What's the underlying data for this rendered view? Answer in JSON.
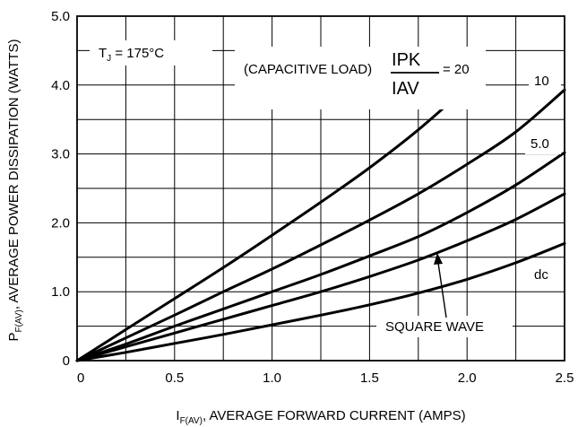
{
  "chart_data": {
    "type": "line",
    "xlabel_prefix": "I",
    "xlabel_sub": "F(AV)",
    "xlabel_rest": ", AVERAGE FORWARD CURRENT (AMPS)",
    "ylabel_prefix": "P",
    "ylabel_sub": "F(AV)",
    "ylabel_rest": ", AVERAGE POWER DISSIPATION (WATTS)",
    "xlim": [
      0,
      2.5
    ],
    "ylim": [
      0,
      5.0
    ],
    "x_ticks": [
      "0",
      "0.5",
      "1.0",
      "1.5",
      "2.0",
      "2.5"
    ],
    "y_ticks": [
      "0",
      "1.0",
      "2.0",
      "3.0",
      "4.0",
      "5.0"
    ],
    "grid": true,
    "annotations": {
      "tj_prefix": "T",
      "tj_sub": "J",
      "tj_rest": " = 175°C",
      "load_text": "(CAPACITIVE LOAD)",
      "ipk_i": "I",
      "ipk_sub": "PK",
      "iav_i": "I",
      "iav_sub": "AV",
      "ratio_eq": "= 20",
      "label_10": "10",
      "label_5": "5.0",
      "label_dc": "dc",
      "square_wave": "SQUARE WAVE"
    },
    "series": [
      {
        "name": "20",
        "x": [
          0,
          0.25,
          0.5,
          0.75,
          1.0,
          1.25,
          1.5,
          1.75,
          2.0
        ],
        "y": [
          0,
          0.45,
          0.9,
          1.35,
          1.82,
          2.3,
          2.8,
          3.35,
          3.97
        ]
      },
      {
        "name": "10",
        "x": [
          0,
          0.25,
          0.5,
          0.75,
          1.0,
          1.25,
          1.5,
          1.75,
          2.0,
          2.25,
          2.5
        ],
        "y": [
          0,
          0.33,
          0.66,
          1.0,
          1.33,
          1.68,
          2.04,
          2.42,
          2.85,
          3.32,
          3.93
        ]
      },
      {
        "name": "5.0",
        "x": [
          0,
          0.25,
          0.5,
          0.75,
          1.0,
          1.25,
          1.5,
          1.75,
          2.0,
          2.25,
          2.5
        ],
        "y": [
          0,
          0.24,
          0.5,
          0.75,
          1.0,
          1.25,
          1.52,
          1.8,
          2.15,
          2.55,
          3.02
        ]
      },
      {
        "name": "square wave",
        "x": [
          0,
          0.25,
          0.5,
          0.75,
          1.0,
          1.25,
          1.5,
          1.75,
          2.0,
          2.25,
          2.5
        ],
        "y": [
          0,
          0.2,
          0.4,
          0.6,
          0.8,
          1.0,
          1.22,
          1.46,
          1.74,
          2.05,
          2.42
        ]
      },
      {
        "name": "dc",
        "x": [
          0,
          0.25,
          0.5,
          0.75,
          1.0,
          1.25,
          1.5,
          1.75,
          2.0,
          2.25,
          2.5
        ],
        "y": [
          0,
          0.12,
          0.25,
          0.38,
          0.52,
          0.66,
          0.81,
          0.98,
          1.18,
          1.42,
          1.7
        ]
      }
    ]
  }
}
